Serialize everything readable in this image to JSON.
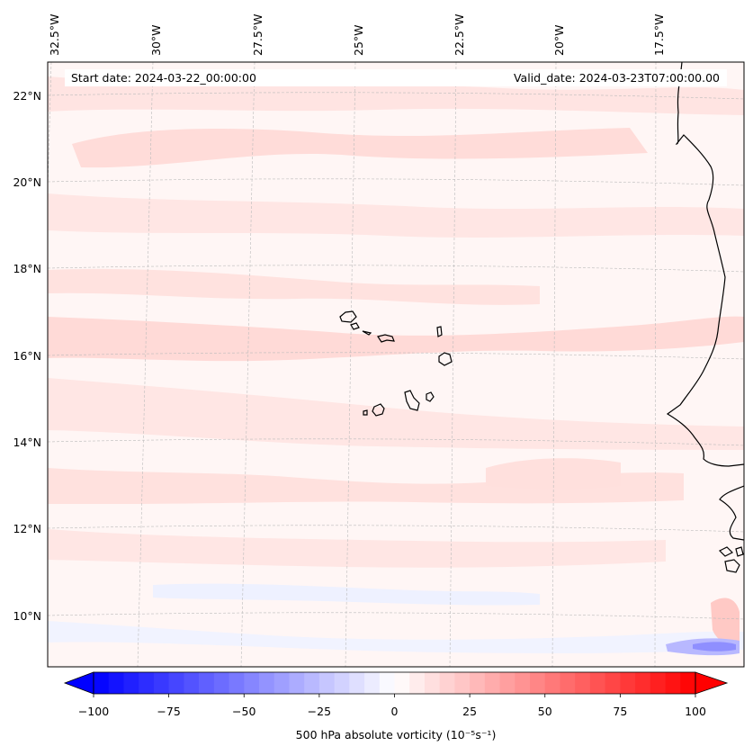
{
  "map": {
    "annotation": {
      "start_date": "Start date: 2024-03-22_00:00:00",
      "valid_date": "Valid_date: 2024-03-23T07:00:00.00"
    },
    "lon_labels": [
      "32.5°W",
      "30°W",
      "27.5°W",
      "25°W",
      "22.5°W",
      "20°W",
      "17.5°W"
    ],
    "lat_labels": [
      "22°N",
      "20°N",
      "18°N",
      "16°N",
      "14°N",
      "12°N",
      "10°N"
    ],
    "lon_values": [
      -32.5,
      -30,
      -27.5,
      -25,
      -22.5,
      -20,
      -17.5
    ],
    "lat_values": [
      22,
      20,
      18,
      16,
      14,
      12,
      10
    ],
    "extent": {
      "lon_min": -32.5,
      "lon_max": -16.0,
      "lat_min": 8.8,
      "lat_max": 22.8
    },
    "region": "Cabo Verde islands and West African coast (Senegal / Gambia / Guinea-Bissau)",
    "field": "500 hPa absolute vorticity"
  },
  "colorbar": {
    "label": "500 hPa absolute vorticity (10⁻⁵s⁻¹)",
    "ticks": [
      "−100",
      "−75",
      "−50",
      "−25",
      "0",
      "25",
      "50",
      "75",
      "100"
    ],
    "tick_values": [
      -100,
      -75,
      -50,
      -25,
      0,
      25,
      50,
      75,
      100
    ],
    "vmin": -100,
    "vmax": 100,
    "step": 5,
    "colors": {
      "low": "#0000ff",
      "mid": "#ffffff",
      "high": "#ff0000"
    }
  },
  "colors": {
    "background_field": "#fff6f5",
    "light_positive": "#ffe4e2",
    "moderate_positive": "#ffd2cf",
    "light_negative": "#eef1ff",
    "negative_spot": "#8f8fff",
    "coast": "#000000",
    "grid": "#bbbbbb"
  }
}
